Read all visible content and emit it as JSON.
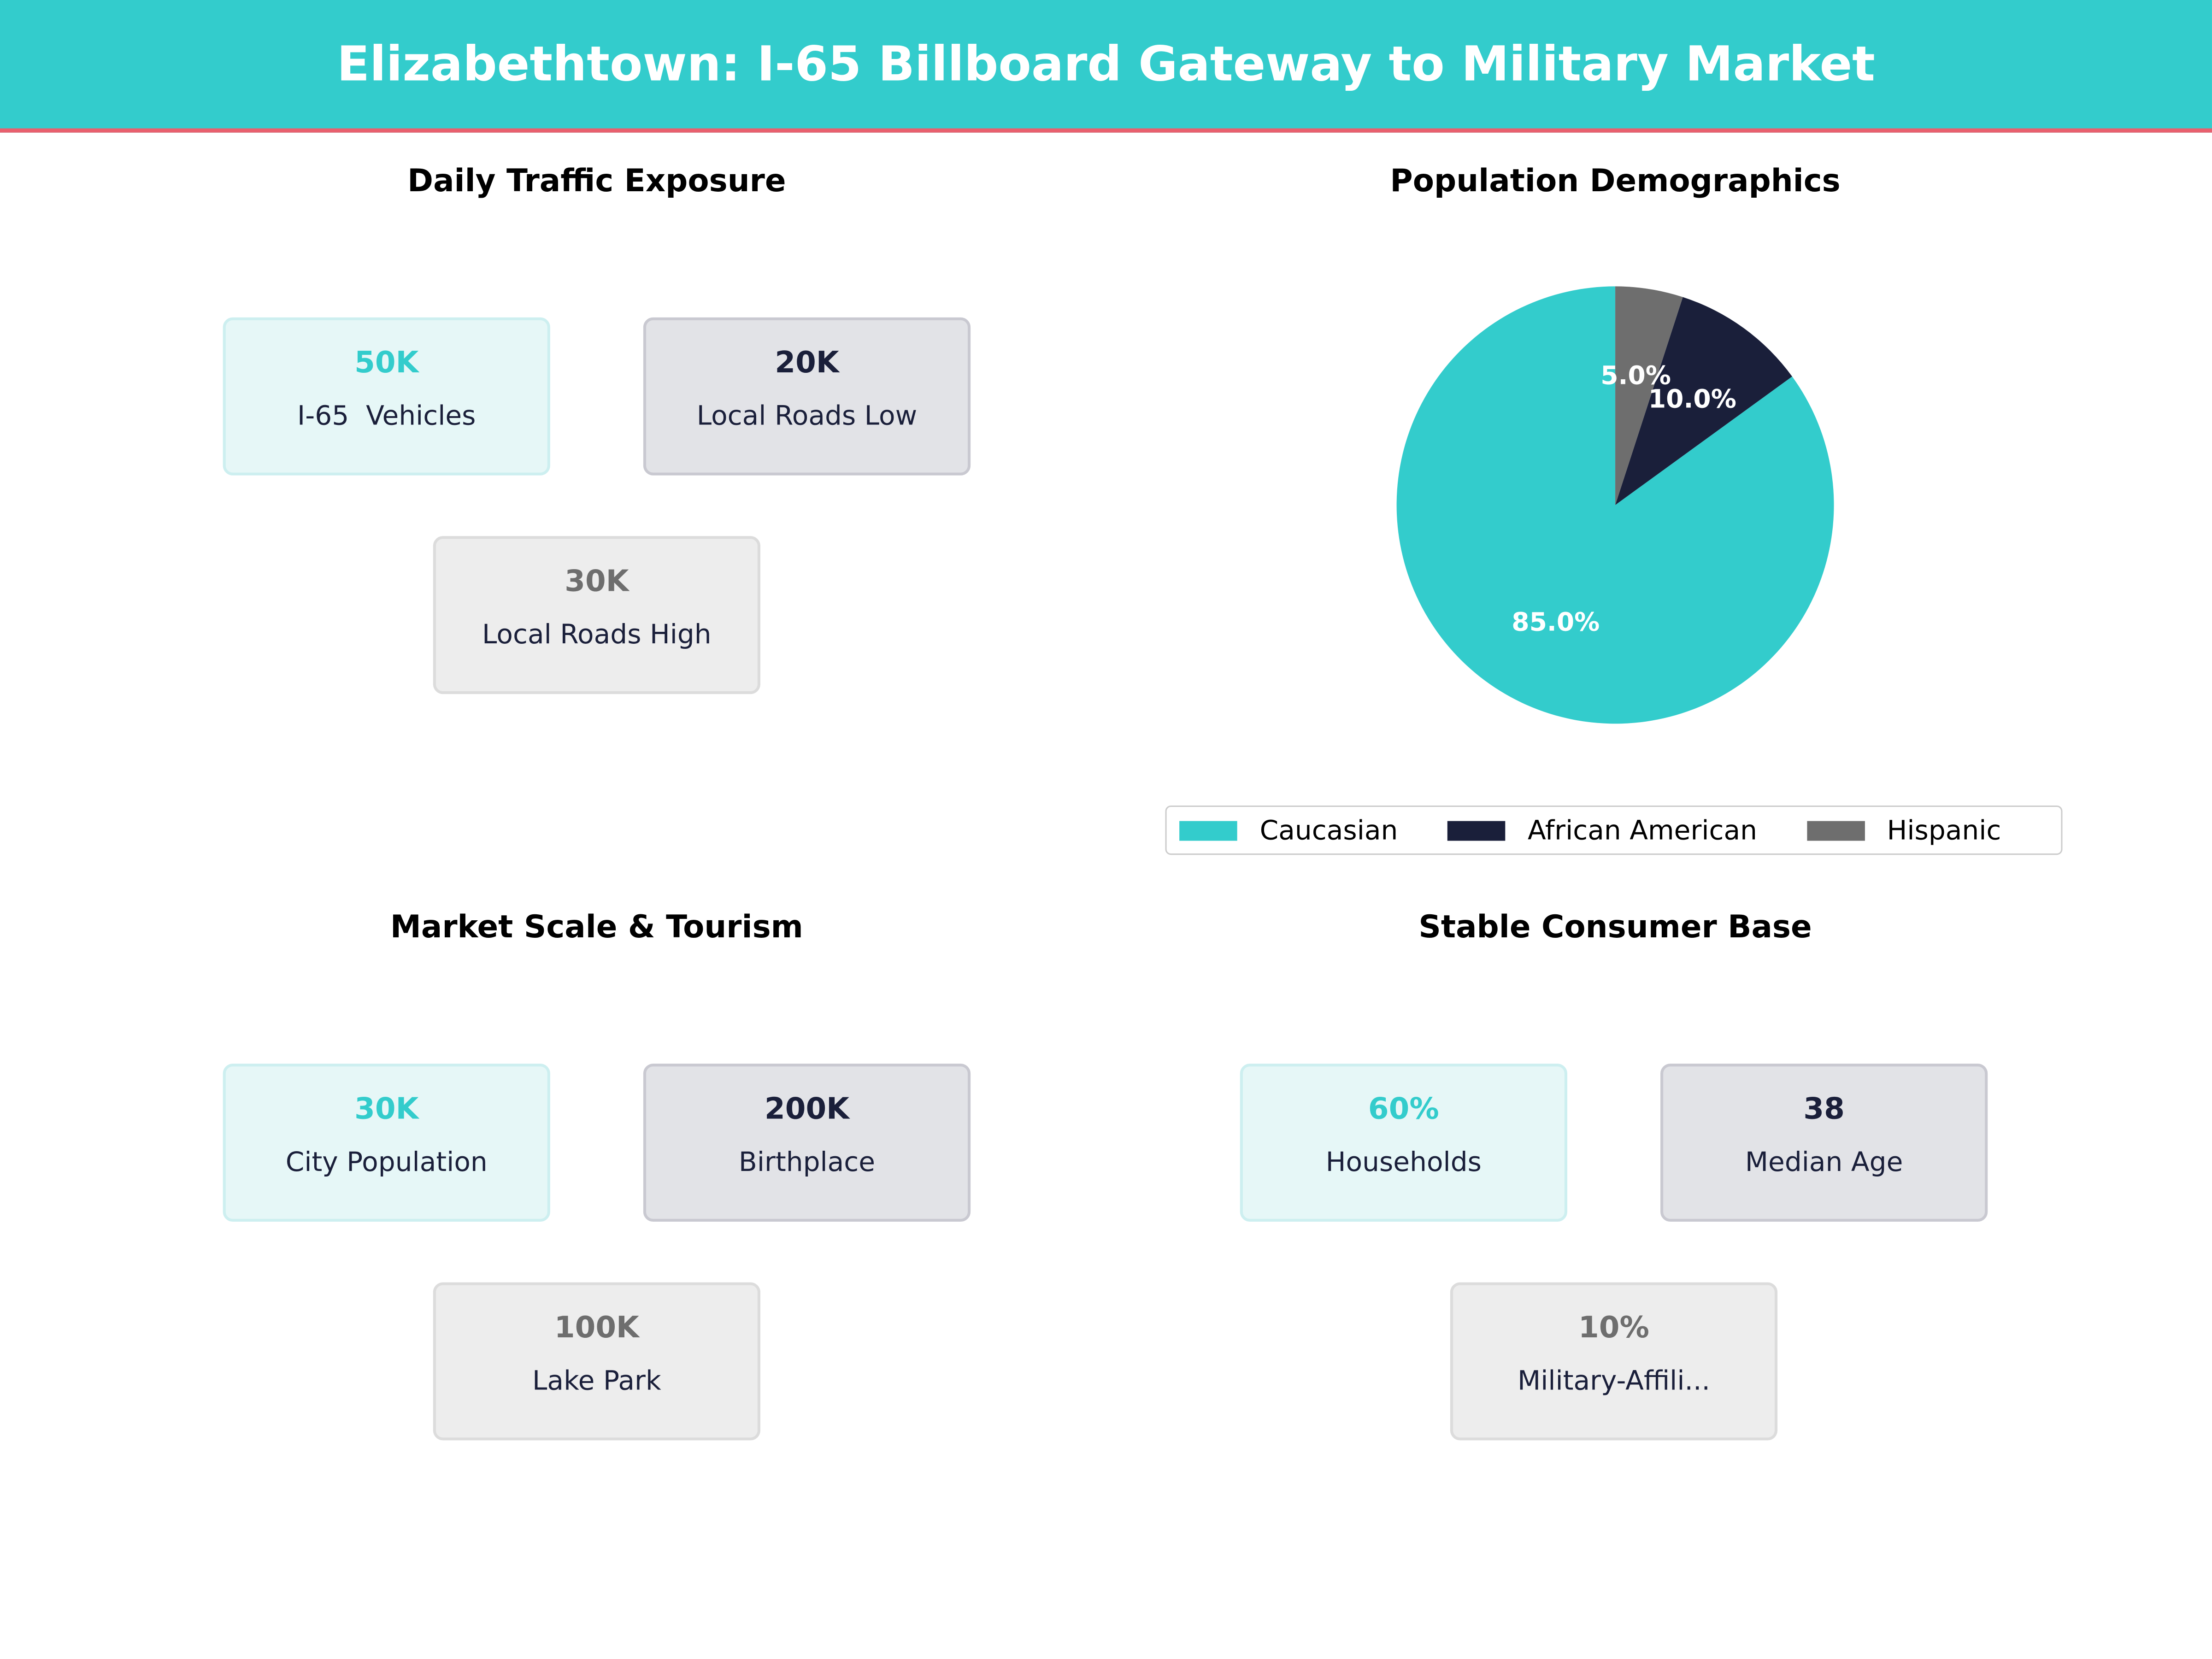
{
  "title": "Elizabethtown: I-65 Billboard Gateway to Military Market",
  "colors": {
    "teal": "#33cccc",
    "navy": "#1a1f3a",
    "gray": "#6e6e6e",
    "accent_line": "#e8606e"
  },
  "sections": {
    "traffic": {
      "title": "Daily Traffic Exposure",
      "cards": [
        {
          "value": "50K",
          "label": "I-65  Vehicles"
        },
        {
          "value": "20K",
          "label": "Local Roads Low"
        },
        {
          "value": "30K",
          "label": "Local Roads High"
        }
      ]
    },
    "market": {
      "title": "Market Scale & Tourism",
      "cards": [
        {
          "value": "30K",
          "label": "City Population"
        },
        {
          "value": "200K",
          "label": "Birthplace"
        },
        {
          "value": "100K",
          "label": "Lake Park"
        }
      ]
    },
    "consumer": {
      "title": "Stable Consumer Base",
      "cards": [
        {
          "value": "60%",
          "label": "Households"
        },
        {
          "value": "38",
          "label": "Median Age"
        },
        {
          "value": "10%",
          "label": "Military-Affili..."
        }
      ]
    }
  },
  "chart_data": {
    "type": "pie",
    "title": "Population Demographics",
    "categories": [
      "Caucasian",
      "African American",
      "Hispanic"
    ],
    "values": [
      85.0,
      10.0,
      5.0
    ],
    "labels": [
      "85.0%",
      "10.0%",
      "5.0%"
    ],
    "colors": [
      "#33cccc",
      "#1a1f3a",
      "#6e6e6e"
    ],
    "start_angle_deg": 90,
    "direction": "counterclockwise",
    "legend_placement": "bottom-center"
  }
}
